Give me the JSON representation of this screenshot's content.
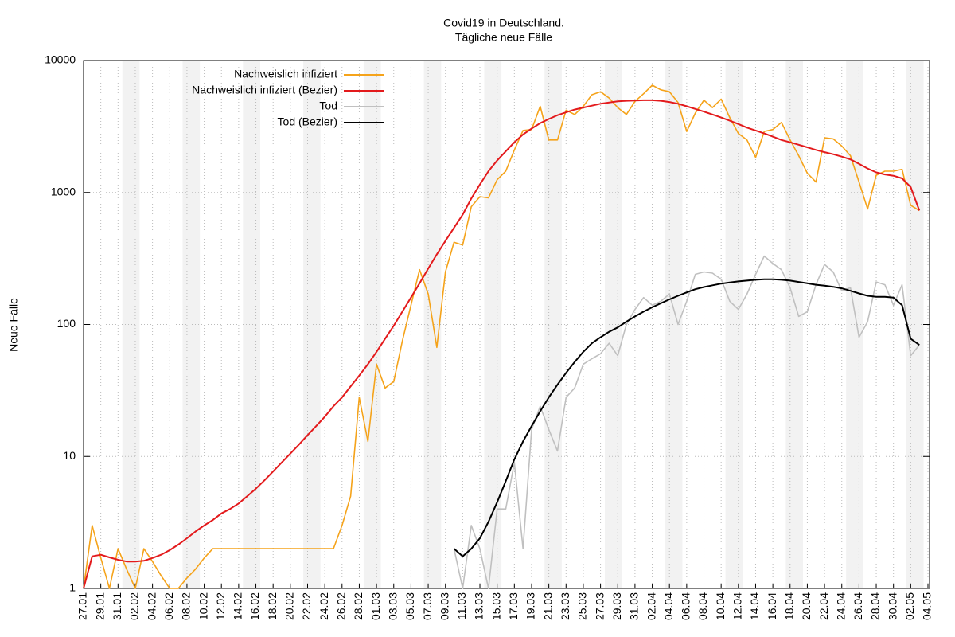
{
  "chart_data": {
    "type": "line",
    "title": "Covid19 in Deutschland.",
    "subtitle": "Tägliche neue Fälle",
    "y_label": "Neue Fälle",
    "categories": [
      "27.01",
      null,
      "29.01",
      null,
      "31.01",
      null,
      "02.02",
      null,
      "04.02",
      null,
      "06.02",
      null,
      "08.02",
      null,
      "10.02",
      null,
      "12.02",
      null,
      "14.02",
      null,
      "16.02",
      null,
      "18.02",
      null,
      "20.02",
      null,
      "22.02",
      null,
      "24.02",
      null,
      "26.02",
      null,
      "28.02",
      null,
      "01.03",
      null,
      "03.03",
      null,
      "05.03",
      null,
      "07.03",
      null,
      "09.03",
      null,
      "11.03",
      null,
      "13.03",
      null,
      "15.03",
      null,
      "17.03",
      null,
      "19.03",
      null,
      "21.03",
      null,
      "23.03",
      null,
      "25.03",
      null,
      "27.03",
      null,
      "29.03",
      null,
      "31.03",
      null,
      "02.04",
      null,
      "04.04",
      null,
      "06.04",
      null,
      "08.04",
      null,
      "10.04",
      null,
      "12.04",
      null,
      "14.04",
      null,
      "16.04",
      null,
      "18.04",
      null,
      "20.04",
      null,
      "22.04",
      null,
      "24.04",
      null,
      "26.04",
      null,
      "28.04",
      null,
      "30.04",
      null,
      "02.05",
      null,
      "04.05"
    ],
    "series": [
      {
        "name": "Nachweislich infiziert",
        "color": "#f5a31a",
        "values": [
          1,
          3,
          1.7,
          1,
          2,
          1.4,
          1,
          2,
          1.6,
          1.25,
          1,
          1,
          1.2,
          1.4,
          1.7,
          2,
          2,
          2,
          2,
          2,
          2,
          2,
          2,
          2,
          2,
          2,
          2,
          2,
          2,
          2,
          3,
          5,
          28,
          13,
          50,
          33,
          37,
          75,
          140,
          260,
          170,
          67,
          250,
          420,
          400,
          780,
          930,
          910,
          1250,
          1450,
          2100,
          2950,
          3000,
          4500,
          2500,
          2500,
          4200,
          3900,
          4500,
          5500,
          5800,
          5200,
          4400,
          3900,
          4900,
          5600,
          6500,
          6000,
          5800,
          4800,
          2900,
          4000,
          5000,
          4400,
          5100,
          3700,
          2800,
          2500,
          1850,
          2900,
          3000,
          3400,
          2500,
          1900,
          1400,
          1200,
          2600,
          2550,
          2250,
          1900,
          1200,
          750,
          1350,
          1450,
          1450,
          1500,
          800,
          730,
          null
        ]
      },
      {
        "name": "Nachweislich infiziert (Bezier)",
        "color": "#e31a1c",
        "values": [
          1,
          1.75,
          1.8,
          1.72,
          1.65,
          1.6,
          1.6,
          1.62,
          1.7,
          1.8,
          1.95,
          2.15,
          2.4,
          2.7,
          3.0,
          3.3,
          3.7,
          4.0,
          4.4,
          5.0,
          5.7,
          6.6,
          7.7,
          9.0,
          10.5,
          12.3,
          14.5,
          17,
          20,
          24,
          28,
          34,
          41,
          50,
          62,
          78,
          98,
          125,
          160,
          205,
          265,
          340,
          430,
          540,
          680,
          900,
          1150,
          1450,
          1750,
          2050,
          2400,
          2750,
          3050,
          3350,
          3600,
          3850,
          4050,
          4250,
          4400,
          4550,
          4700,
          4800,
          4900,
          4950,
          4980,
          5000,
          5000,
          4950,
          4850,
          4700,
          4500,
          4300,
          4100,
          3900,
          3700,
          3500,
          3300,
          3100,
          2950,
          2800,
          2650,
          2500,
          2400,
          2300,
          2200,
          2100,
          2020,
          1950,
          1870,
          1780,
          1650,
          1520,
          1420,
          1370,
          1340,
          1280,
          1100,
          730,
          null
        ]
      },
      {
        "name": "Tod",
        "color": "#c0c0c0",
        "values": [
          null,
          null,
          null,
          null,
          null,
          null,
          null,
          null,
          null,
          null,
          null,
          null,
          null,
          null,
          null,
          null,
          null,
          null,
          null,
          null,
          null,
          null,
          null,
          null,
          null,
          null,
          null,
          null,
          null,
          null,
          null,
          null,
          null,
          null,
          null,
          null,
          null,
          null,
          null,
          null,
          null,
          null,
          null,
          2,
          1,
          3,
          2,
          1,
          4,
          4,
          9,
          2,
          16,
          24,
          16,
          11,
          28,
          33,
          50,
          55,
          60,
          72,
          58,
          100,
          130,
          160,
          140,
          150,
          170,
          100,
          150,
          240,
          250,
          245,
          220,
          150,
          130,
          170,
          240,
          330,
          290,
          260,
          190,
          115,
          125,
          200,
          285,
          250,
          180,
          190,
          80,
          105,
          210,
          200,
          140,
          200,
          58,
          70,
          null
        ]
      },
      {
        "name": "Tod (Bezier)",
        "color": "#000000",
        "values": [
          null,
          null,
          null,
          null,
          null,
          null,
          null,
          null,
          null,
          null,
          null,
          null,
          null,
          null,
          null,
          null,
          null,
          null,
          null,
          null,
          null,
          null,
          null,
          null,
          null,
          null,
          null,
          null,
          null,
          null,
          null,
          null,
          null,
          null,
          null,
          null,
          null,
          null,
          null,
          null,
          null,
          null,
          null,
          2,
          1.75,
          2.0,
          2.4,
          3.2,
          4.5,
          6.5,
          9.5,
          13,
          17,
          22,
          28,
          35,
          43,
          52,
          62,
          72,
          80,
          88,
          95,
          105,
          115,
          125,
          135,
          145,
          155,
          165,
          175,
          185,
          192,
          198,
          204,
          208,
          212,
          215,
          218,
          220,
          220,
          218,
          215,
          210,
          205,
          200,
          197,
          193,
          188,
          180,
          172,
          165,
          162,
          162,
          160,
          140,
          78,
          70,
          null
        ]
      }
    ],
    "ylim": [
      1,
      10000
    ],
    "yticks": [
      1,
      10,
      100,
      1000,
      10000
    ],
    "log_y": true,
    "grid": true,
    "legend": "top-left"
  }
}
